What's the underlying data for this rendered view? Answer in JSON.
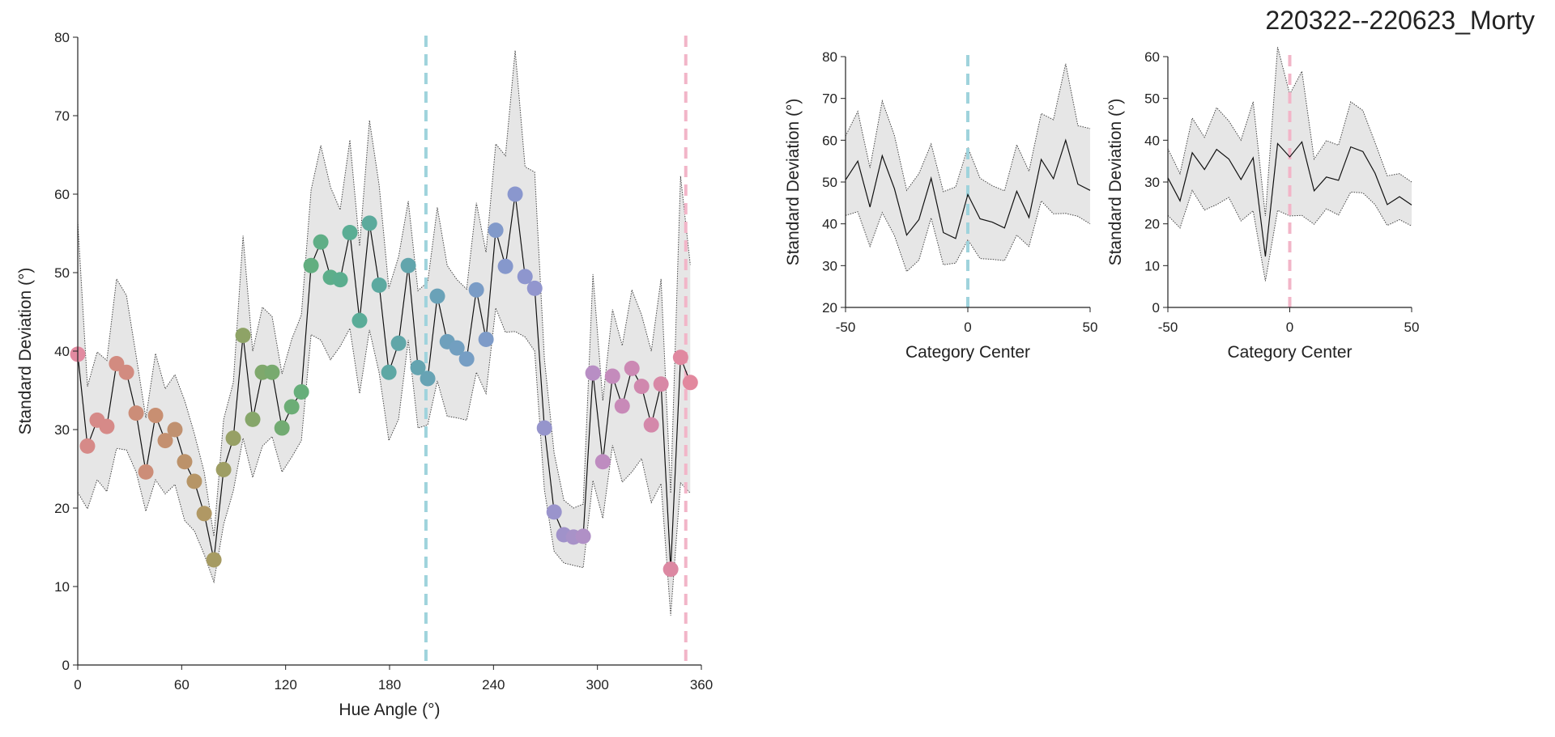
{
  "title": "220322--220623_Morty",
  "chart_data": [
    {
      "type": "scatter",
      "xlabel": "Hue Angle (°)",
      "ylabel": "Standard Deviation (°)",
      "xlim": [
        0,
        360
      ],
      "ylim": [
        0,
        80
      ],
      "xticks": [
        0,
        60,
        120,
        180,
        240,
        300,
        360
      ],
      "yticks": [
        0,
        10,
        20,
        30,
        40,
        50,
        60,
        70,
        80
      ],
      "grid": false,
      "vlines": [
        {
          "x": 201,
          "color": "#9fd3dc"
        },
        {
          "x": 351,
          "color": "#f2b5c8"
        }
      ],
      "x": [
        0,
        5.6,
        11.2,
        16.8,
        22.4,
        28.1,
        33.7,
        39.3,
        44.9,
        50.5,
        56.1,
        61.7,
        67.3,
        73,
        78.6,
        84.2,
        89.8,
        95.4,
        101,
        106.6,
        112.2,
        117.9,
        123.5,
        129.1,
        134.7,
        140.3,
        145.9,
        151.5,
        157.1,
        162.7,
        168.4,
        174,
        179.6,
        185.2,
        190.8,
        196.4,
        202,
        207.6,
        213.3,
        218.9,
        224.5,
        230.1,
        235.7,
        241.3,
        246.9,
        252.5,
        258.2,
        263.8,
        269.4,
        275,
        280.6,
        286.2,
        291.8,
        297.4,
        303.1,
        308.7,
        314.3,
        319.9,
        325.5,
        331.1,
        336.7,
        342.3,
        348,
        353.6
      ],
      "y": [
        39.6,
        27.9,
        31.2,
        30.4,
        38.4,
        37.3,
        32.1,
        24.6,
        31.8,
        28.6,
        30.0,
        25.9,
        23.4,
        19.3,
        13.4,
        24.9,
        28.9,
        42.0,
        31.3,
        37.3,
        37.3,
        30.2,
        32.9,
        34.8,
        50.9,
        53.9,
        49.4,
        49.1,
        55.1,
        43.9,
        56.3,
        48.4,
        37.3,
        41.0,
        50.9,
        37.9,
        36.5,
        47.0,
        41.2,
        40.4,
        39.0,
        47.8,
        41.5,
        55.4,
        50.8,
        60.0,
        49.5,
        48.0,
        30.2,
        19.5,
        16.6,
        16.3,
        16.4,
        37.2,
        25.9,
        36.8,
        33.0,
        37.8,
        35.5,
        30.6,
        35.8,
        12.2,
        39.2,
        36.0
      ],
      "band_upper": [
        56.5,
        35.5,
        39.9,
        38.8,
        49.2,
        47.1,
        39.4,
        31.5,
        39.7,
        35.2,
        37.0,
        33.7,
        29.5,
        24.6,
        16.4,
        31.3,
        36.0,
        54.7,
        40.0,
        45.6,
        44.4,
        37.1,
        41.5,
        44.6,
        60.5,
        66.2,
        60.9,
        58.0,
        66.9,
        53.4,
        69.4,
        61.1,
        48.0,
        52.0,
        59.1,
        47.7,
        48.8,
        58.3,
        50.9,
        49.1,
        47.9,
        58.9,
        52.6,
        66.4,
        64.9,
        78.3,
        63.5,
        62.8,
        39.0,
        27.0,
        21.0,
        20.0,
        20.5,
        49.8,
        33.7,
        45.3,
        40.7,
        47.8,
        44.6,
        40.0,
        49.2,
        21.9,
        62.3,
        51.0
      ],
      "band_lower": [
        22.0,
        19.9,
        23.6,
        22.1,
        27.6,
        27.4,
        24.6,
        19.6,
        23.6,
        21.8,
        23.0,
        18.4,
        17.1,
        14.1,
        10.6,
        17.9,
        22.2,
        28.9,
        23.9,
        27.9,
        29.1,
        24.6,
        26.5,
        28.6,
        42.1,
        41.4,
        38.9,
        40.6,
        42.9,
        34.6,
        42.7,
        37.2,
        28.6,
        31.3,
        41.4,
        30.2,
        30.6,
        36.2,
        31.7,
        31.5,
        31.2,
        37.3,
        34.6,
        45.5,
        42.4,
        42.5,
        41.8,
        40.0,
        22.3,
        14.5,
        13.0,
        12.7,
        12.4,
        23.5,
        18.7,
        28.0,
        23.3,
        24.6,
        26.3,
        20.7,
        23.1,
        6.3,
        23.2,
        21.9
      ],
      "point_colors": [
        "#e28aa0",
        "#d68a88",
        "#d68a88",
        "#d68a88",
        "#d28b80",
        "#d28b80",
        "#cc8d78",
        "#cc8d78",
        "#c88f72",
        "#c49070",
        "#c09170",
        "#bc926a",
        "#b69566",
        "#b09864",
        "#a69b62",
        "#9e9e64",
        "#97a065",
        "#8ea366",
        "#86a66a",
        "#7fa86c",
        "#78aa6f",
        "#72ab72",
        "#6cad76",
        "#66ae7a",
        "#62ae80",
        "#5fae86",
        "#5cae8a",
        "#5aad8e",
        "#5aad94",
        "#5aac98",
        "#5baa9c",
        "#5ca9a0",
        "#5ea8a4",
        "#60a6a8",
        "#62a5ac",
        "#64a4b0",
        "#67a3b4",
        "#6aa2b8",
        "#6ea0bc",
        "#729fc0",
        "#769ec4",
        "#7a9cc6",
        "#7e9bc8",
        "#829aca",
        "#8698cc",
        "#8a97ce",
        "#8e96ce",
        "#9296ce",
        "#9695cc",
        "#9a94cc",
        "#a092ca",
        "#a892c8",
        "#b090c6",
        "#b88ec4",
        "#be8cc0",
        "#c48bbc",
        "#c88ab8",
        "#cc89b4",
        "#d088ae",
        "#d488aa",
        "#d888a6",
        "#dc88a2",
        "#e088a0",
        "#e2889e"
      ]
    },
    {
      "type": "line",
      "xlabel": "Category Center",
      "ylabel": "Standard Deviation (°)",
      "xlim": [
        -50,
        50
      ],
      "ylim": [
        20,
        80
      ],
      "xticks": [
        -50,
        0,
        50
      ],
      "yticks": [
        20,
        30,
        40,
        50,
        60,
        70,
        80
      ],
      "grid": false,
      "vline": {
        "x": 0,
        "color": "#9fd3dc"
      },
      "x": [
        -50,
        -45,
        -40,
        -35,
        -30,
        -25,
        -20,
        -15,
        -10,
        -5,
        0,
        5,
        10,
        15,
        20,
        25,
        30,
        35,
        40,
        45,
        50
      ],
      "y": [
        50.5,
        55.0,
        44.0,
        56.3,
        48.4,
        37.3,
        41.0,
        50.9,
        37.9,
        36.5,
        47.0,
        41.2,
        40.4,
        39.0,
        47.8,
        41.5,
        55.4,
        50.8,
        60.0,
        49.5,
        48.0
      ],
      "band_upper": [
        61.0,
        66.9,
        53.4,
        69.4,
        61.1,
        48.0,
        52.0,
        59.1,
        47.7,
        48.8,
        58.3,
        50.9,
        49.1,
        47.9,
        58.9,
        52.6,
        66.4,
        64.9,
        78.3,
        63.5,
        62.8
      ],
      "band_lower": [
        42.0,
        42.9,
        34.6,
        42.7,
        37.2,
        28.6,
        31.3,
        41.4,
        30.2,
        30.6,
        36.2,
        31.7,
        31.5,
        31.2,
        37.3,
        34.6,
        45.5,
        42.4,
        42.5,
        41.8,
        40.0
      ]
    },
    {
      "type": "line",
      "xlabel": "Category Center",
      "ylabel": "Standard Deviation (°)",
      "xlim": [
        -50,
        50
      ],
      "ylim": [
        0,
        60
      ],
      "xticks": [
        -50,
        0,
        50
      ],
      "yticks": [
        0,
        10,
        20,
        30,
        40,
        50,
        60
      ],
      "grid": false,
      "vline": {
        "x": 0,
        "color": "#f2b5c8"
      },
      "x": [
        -50,
        -45,
        -40,
        -35,
        -30,
        -25,
        -20,
        -15,
        -10,
        -5,
        0,
        5,
        10,
        15,
        20,
        25,
        30,
        35,
        40,
        45,
        50
      ],
      "y": [
        31.0,
        25.5,
        37.0,
        33.0,
        37.8,
        35.5,
        30.6,
        35.8,
        12.2,
        39.2,
        36.0,
        39.6,
        27.9,
        31.2,
        30.4,
        38.4,
        37.3,
        32.1,
        24.6,
        26.5,
        24.5
      ],
      "band_upper": [
        38.0,
        32.0,
        45.3,
        40.7,
        47.8,
        44.6,
        40.0,
        49.2,
        21.9,
        62.3,
        51.0,
        56.5,
        35.5,
        39.9,
        38.8,
        49.2,
        47.1,
        39.4,
        31.5,
        32.0,
        30.0
      ],
      "band_lower": [
        22.0,
        19.0,
        28.0,
        23.3,
        24.6,
        26.3,
        20.7,
        23.1,
        6.3,
        23.2,
        21.9,
        22.0,
        19.9,
        23.6,
        22.1,
        27.6,
        27.4,
        24.6,
        19.6,
        21.0,
        19.5
      ]
    }
  ]
}
